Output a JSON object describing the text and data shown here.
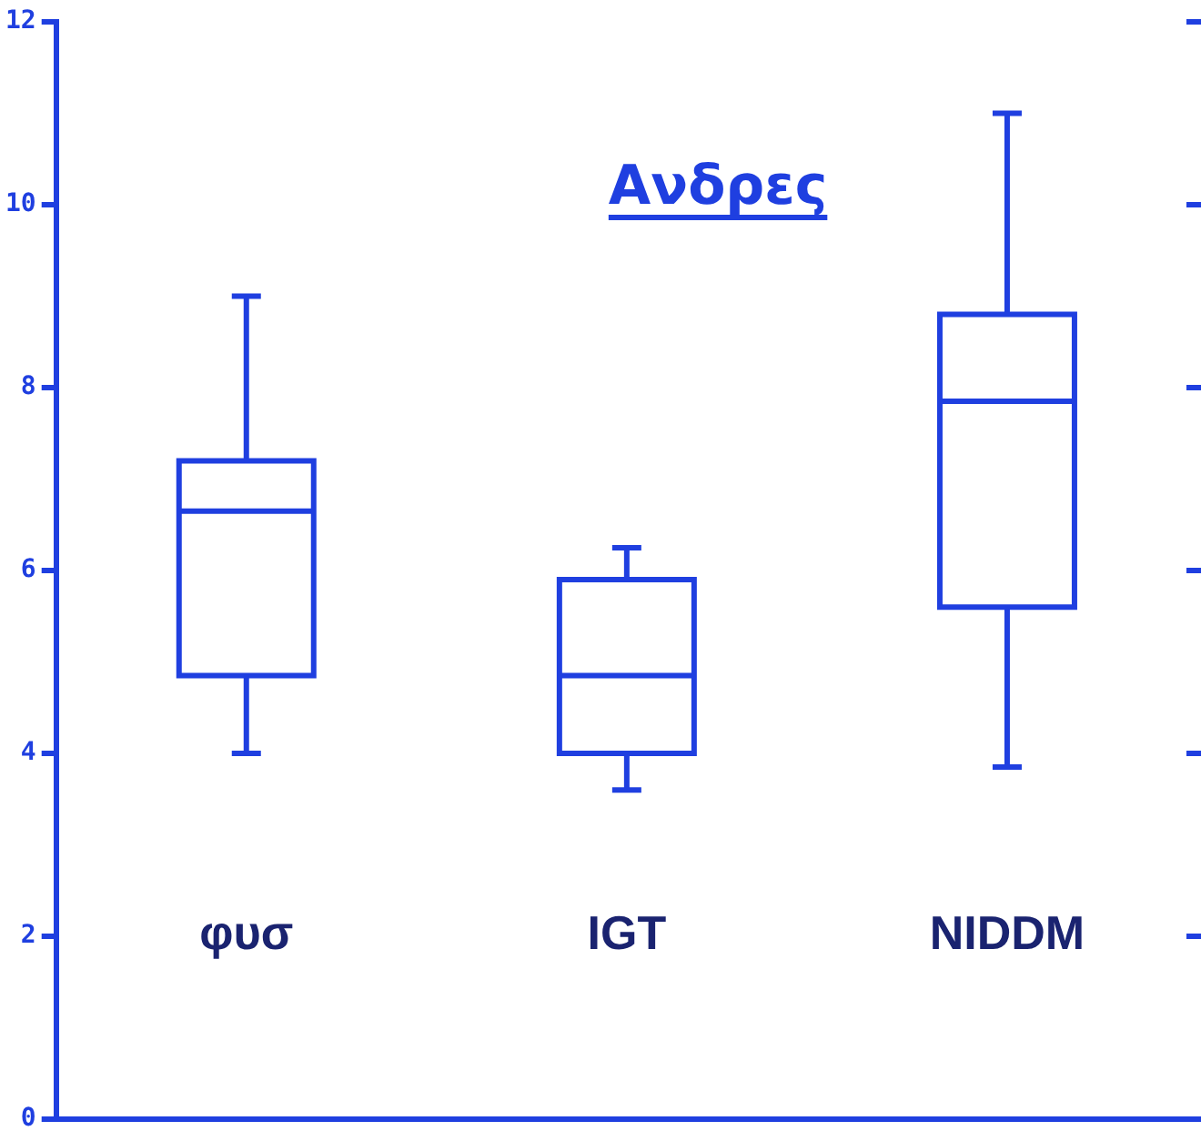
{
  "chart_data": {
    "type": "box",
    "title": "Ανδρες",
    "categories": [
      "φυσ",
      "IGT",
      "NIDDM"
    ],
    "color": "#1f3fe0",
    "boxes": [
      {
        "low": 4.0,
        "q1": 4.85,
        "median": 6.65,
        "q3": 7.2,
        "high": 9.0
      },
      {
        "low": 3.6,
        "q1": 4.0,
        "median": 4.85,
        "q3": 5.9,
        "high": 6.25
      },
      {
        "low": 3.85,
        "q1": 5.6,
        "median": 7.85,
        "q3": 8.8,
        "high": 11.0
      }
    ],
    "ylim": [
      0,
      12
    ],
    "yticks": [
      0,
      2,
      4,
      6,
      8,
      10,
      12
    ],
    "grid": false,
    "legend": false
  }
}
